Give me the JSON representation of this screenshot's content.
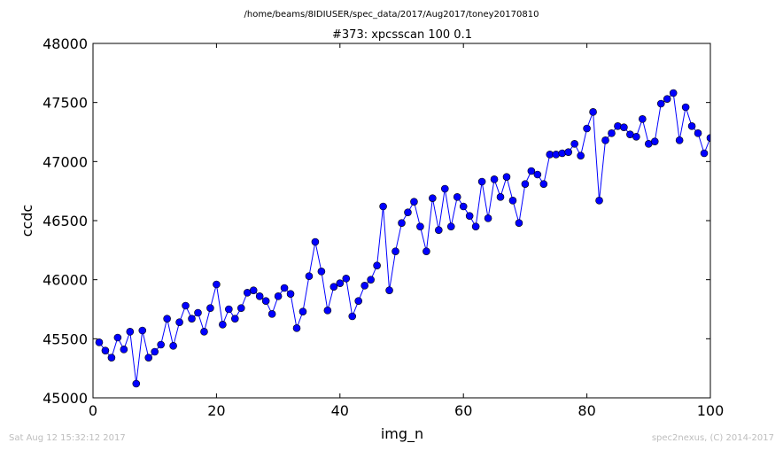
{
  "chart_data": {
    "type": "line",
    "suptitle": "/home/beams/8IDIUSER/spec_data/2017/Aug2017/toney20170810",
    "title": "#373: xpcsscan 100 0.1",
    "xlabel": "img_n",
    "ylabel": "ccdc",
    "xlim": [
      0,
      100
    ],
    "ylim": [
      45000,
      48000
    ],
    "x_ticks": [
      0,
      20,
      40,
      60,
      80,
      100
    ],
    "y_ticks": [
      45000,
      45500,
      46000,
      46500,
      47000,
      47500,
      48000
    ],
    "grid": false,
    "line_color": "#0000ff",
    "marker_color": "#0000ff",
    "x": [
      1,
      2,
      3,
      4,
      5,
      6,
      7,
      8,
      9,
      10,
      11,
      12,
      13,
      14,
      15,
      16,
      17,
      18,
      19,
      20,
      21,
      22,
      23,
      24,
      25,
      26,
      27,
      28,
      29,
      30,
      31,
      32,
      33,
      34,
      35,
      36,
      37,
      38,
      39,
      40,
      41,
      42,
      43,
      44,
      45,
      46,
      47,
      48,
      49,
      50,
      51,
      52,
      53,
      54,
      55,
      56,
      57,
      58,
      59,
      60,
      61,
      62,
      63,
      64,
      65,
      66,
      67,
      68,
      69,
      70,
      71,
      72,
      73,
      74,
      75,
      76,
      77,
      78,
      79,
      80,
      81,
      82,
      83,
      84,
      85,
      86,
      87,
      88,
      89,
      90,
      91,
      92,
      93,
      94,
      95,
      96,
      97,
      98,
      99,
      100
    ],
    "y": [
      45470,
      45400,
      45340,
      45510,
      45410,
      45560,
      45120,
      45570,
      45340,
      45390,
      45450,
      45670,
      45440,
      45640,
      45780,
      45670,
      45720,
      45560,
      45760,
      45960,
      45620,
      45750,
      45670,
      45760,
      45890,
      45910,
      45860,
      45820,
      45710,
      45860,
      45930,
      45880,
      45590,
      45730,
      46030,
      46320,
      46070,
      45740,
      45940,
      45970,
      46010,
      45690,
      45820,
      45950,
      46000,
      46120,
      46620,
      45910,
      46240,
      46480,
      46570,
      46660,
      46450,
      46240,
      46690,
      46420,
      46770,
      46450,
      46700,
      46620,
      46540,
      46450,
      46830,
      46520,
      46850,
      46700,
      46870,
      46670,
      46480,
      46810,
      46920,
      46890,
      46810,
      47060,
      47060,
      47070,
      47080,
      47150,
      47050,
      47280,
      47420,
      46670,
      47180,
      47240,
      47300,
      47290,
      47230,
      47210,
      47360,
      47150,
      47170,
      47490,
      47530,
      47580,
      47180,
      47460,
      47300,
      47240,
      47070,
      47200
    ]
  },
  "footer": {
    "left": "Sat Aug 12 15:32:12 2017",
    "right": "spec2nexus, (C) 2014-2017"
  }
}
